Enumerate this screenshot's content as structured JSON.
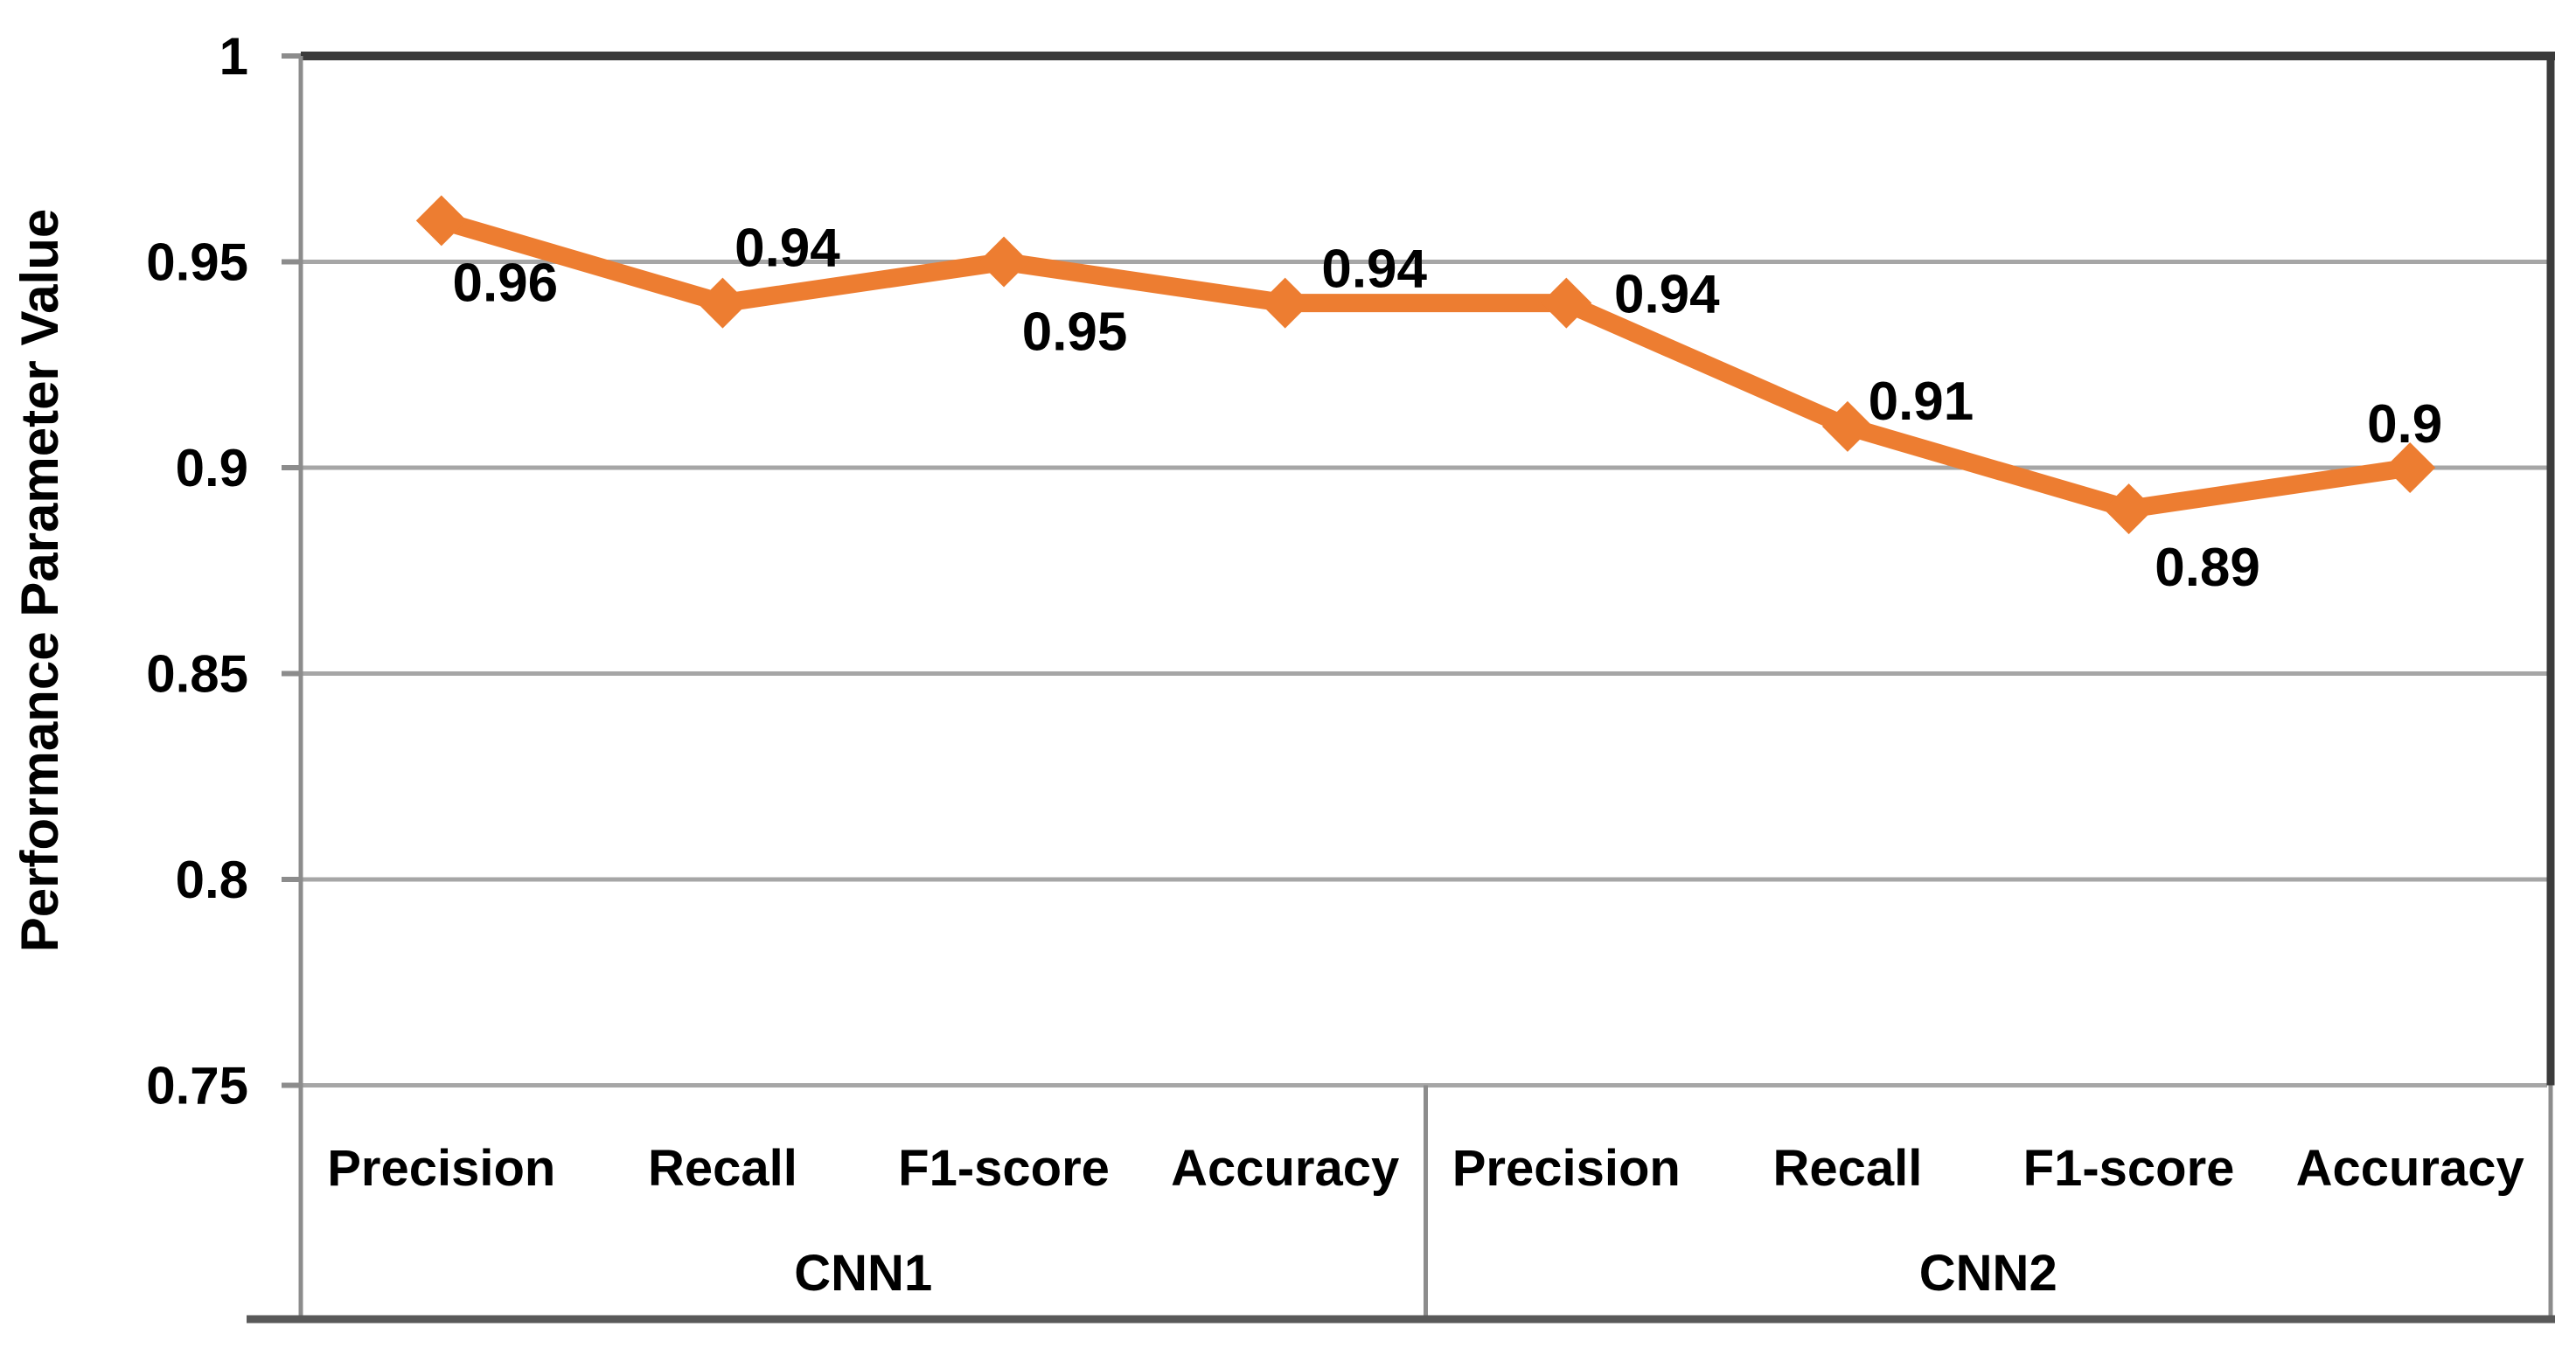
{
  "chart_data": {
    "type": "line",
    "title": "",
    "ylabel": "Performance Parameter Value",
    "xlabel": "",
    "ylim": [
      0.75,
      1.0
    ],
    "grid": true,
    "legend": false,
    "marker": "diamond",
    "yticks": [
      {
        "value": 1.0,
        "label": "1"
      },
      {
        "value": 0.95,
        "label": "0.95"
      },
      {
        "value": 0.9,
        "label": "0.9"
      },
      {
        "value": 0.85,
        "label": "0.85"
      },
      {
        "value": 0.8,
        "label": "0.8"
      },
      {
        "value": 0.75,
        "label": "0.75"
      }
    ],
    "groups": [
      {
        "label": "CNN1",
        "categories": [
          "Precision",
          "Recall",
          "F1-score",
          "Accuracy"
        ]
      },
      {
        "label": "CNN2",
        "categories": [
          "Precision",
          "Recall",
          "F1-score",
          "Accuracy"
        ]
      }
    ],
    "categories": [
      "Precision",
      "Recall",
      "F1-score",
      "Accuracy",
      "Precision",
      "Recall",
      "F1-score",
      "Accuracy"
    ],
    "series": [
      {
        "name": "Performance Parameter Value",
        "color": "#ED7D31",
        "values": [
          0.96,
          0.94,
          0.95,
          0.94,
          0.94,
          0.91,
          0.89,
          0.9
        ],
        "data_labels": [
          "0.96",
          "0.94",
          "0.95",
          "0.94",
          "0.94",
          "0.91",
          "0.89",
          "0.9"
        ],
        "label_offsets": [
          [
            73,
            70
          ],
          [
            74,
            -64
          ],
          [
            81,
            79
          ],
          [
            102,
            -40
          ],
          [
            115,
            -11
          ],
          [
            84,
            -30
          ],
          [
            90,
            66
          ],
          [
            -6,
            -51
          ]
        ]
      }
    ]
  },
  "colors": {
    "series_orange": "#ED7D31",
    "gridline": "#A6A6A6",
    "plot_border_dark": "#3B3B3B",
    "axis_gray": "#8C8C8C",
    "baseline_gray": "#595959",
    "text": "#000000",
    "background": "#FFFFFF"
  }
}
